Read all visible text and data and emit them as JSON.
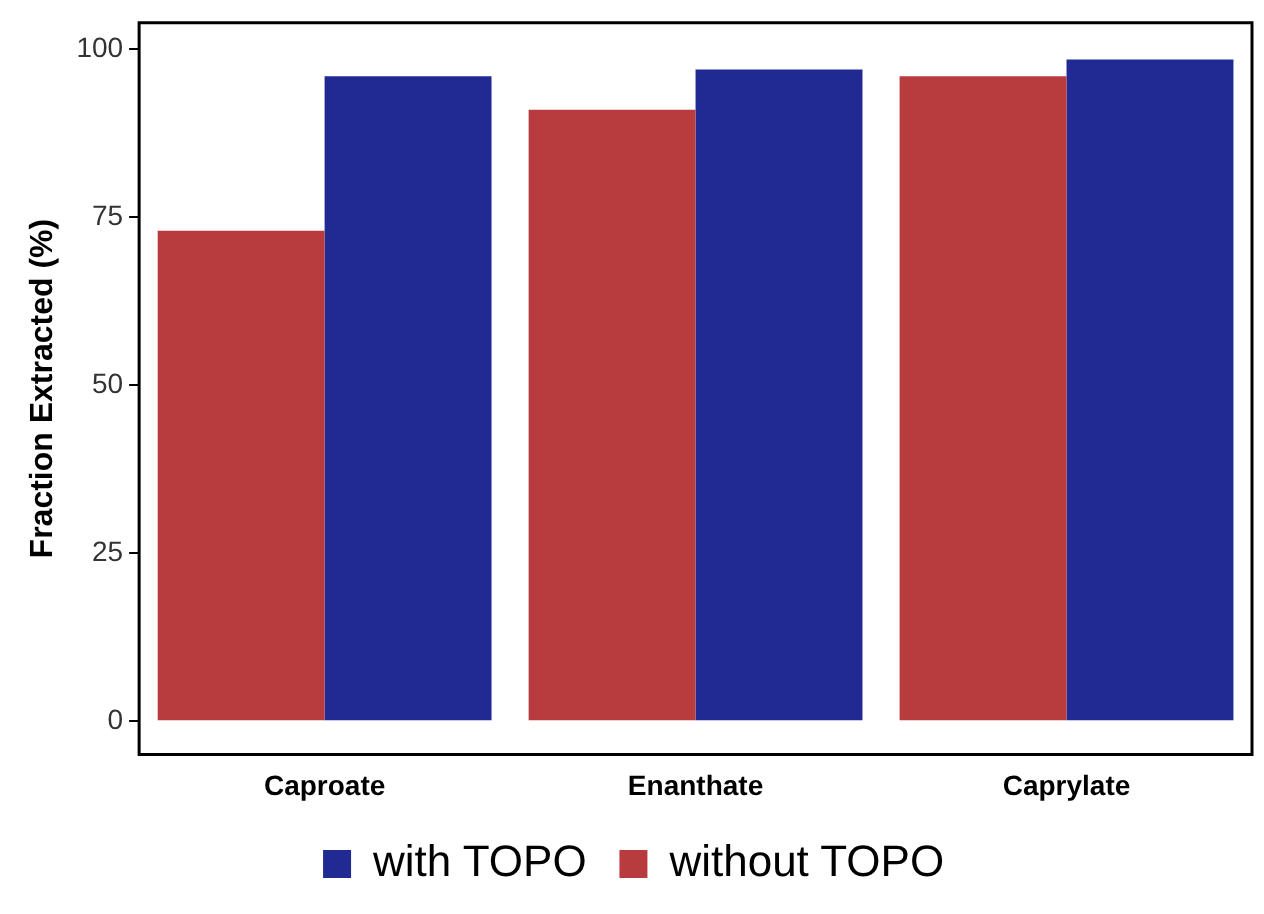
{
  "chart_data": {
    "type": "bar",
    "ylabel": "Fraction Extracted (%)",
    "categories": [
      "Caproate",
      "Enanthate",
      "Caprylate"
    ],
    "series": [
      {
        "name": "without TOPO",
        "color": "#b83b3e",
        "values": [
          73,
          91,
          96
        ]
      },
      {
        "name": "with TOPO",
        "color": "#212a93",
        "values": [
          96,
          97,
          98.5
        ]
      }
    ],
    "ylim": [
      -4.95,
      103.95
    ],
    "yticks": [
      0,
      25,
      50,
      75,
      100
    ],
    "grid": false,
    "legend": "bottom"
  }
}
